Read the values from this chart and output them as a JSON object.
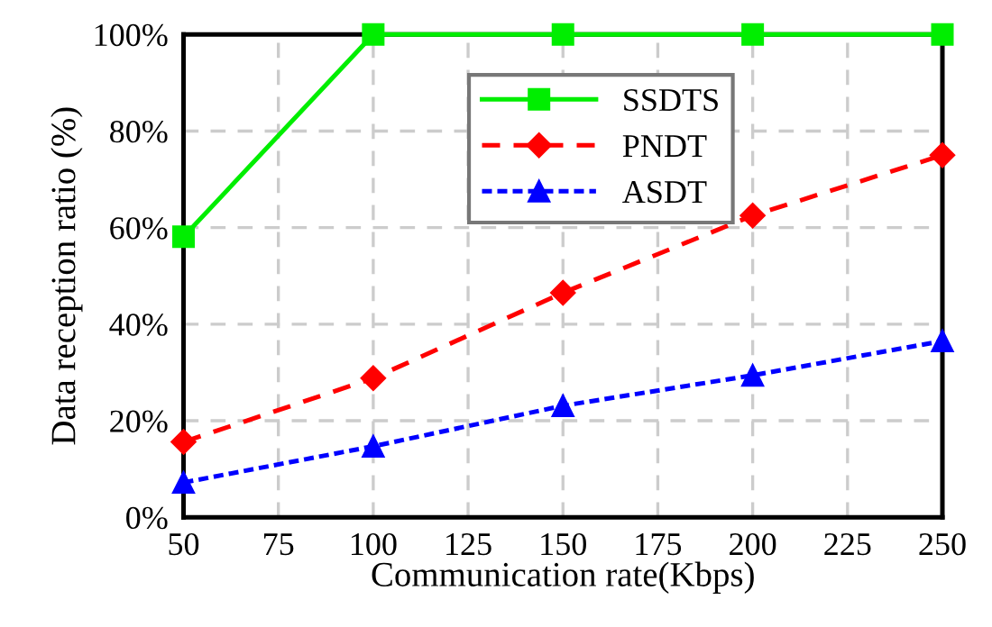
{
  "chart_data": {
    "type": "line",
    "xlabel": "Communication rate(Kbps)",
    "ylabel": "Data reception ratio (%)",
    "x": [
      50,
      100,
      150,
      200,
      250
    ],
    "series": [
      {
        "name": "SSDTS",
        "color": "#00ee00",
        "values": [
          58.1,
          100,
          100,
          100,
          100
        ],
        "marker": "square",
        "line_style": "solid"
      },
      {
        "name": "PNDT",
        "color": "#ff0000",
        "values": [
          15.6,
          28.8,
          46.5,
          62.5,
          75
        ],
        "marker": "diamond",
        "line_style": "dashed"
      },
      {
        "name": "ASDT",
        "color": "#0000ff",
        "values": [
          7.2,
          14.7,
          23.1,
          29.4,
          36.5
        ],
        "marker": "triangle",
        "line_style": "dotted"
      }
    ],
    "xlim": [
      50,
      250
    ],
    "xticks": [
      50,
      75,
      100,
      125,
      150,
      175,
      200,
      225,
      250
    ],
    "ylim": [
      0,
      100
    ],
    "yticks": [
      {
        "value": 0,
        "label": "0%"
      },
      {
        "value": 20,
        "label": "20%"
      },
      {
        "value": 40,
        "label": "40%"
      },
      {
        "value": 60,
        "label": "60%"
      },
      {
        "value": 80,
        "label": "80%"
      },
      {
        "value": 100,
        "label": "100%"
      }
    ],
    "grid": true,
    "legend": "top"
  }
}
